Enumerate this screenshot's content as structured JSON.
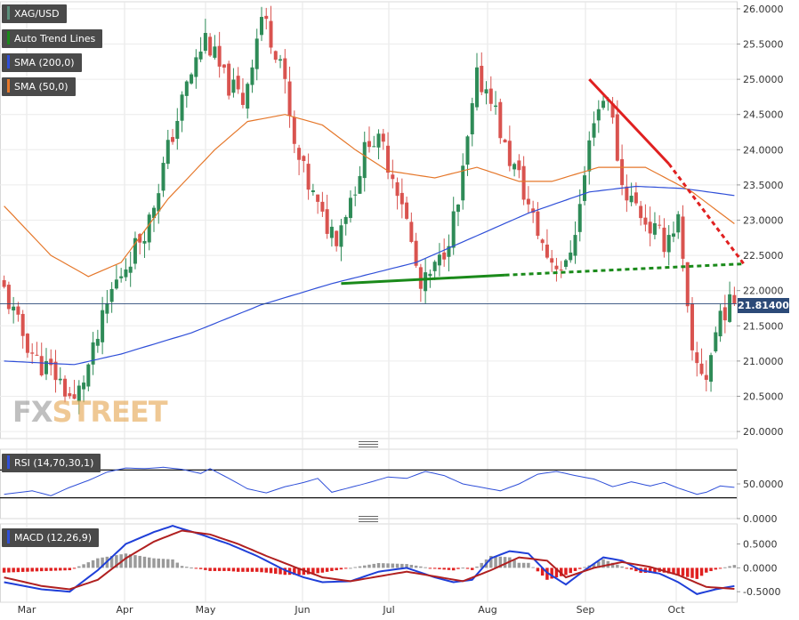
{
  "instrument": "XAG/USD",
  "brand": {
    "part1": "FX",
    "part2": "STREET"
  },
  "colors": {
    "up": "#2e8b57",
    "down": "#d9534f",
    "sma200": "#2f4fd8",
    "sma50": "#e5772a",
    "trend_up": "#1a8a1a",
    "trend_down": "#e02020",
    "macd": "#1f3fd8",
    "signal": "#b02020"
  },
  "legend": [
    {
      "label": "XAG/USD",
      "color": "#5a8f7a"
    },
    {
      "label": "Auto Trend Lines",
      "color": "#1a8a1a"
    },
    {
      "label": "SMA (200,0)",
      "color": "#2f4fd8"
    },
    {
      "label": "SMA (50,0)",
      "color": "#e5772a"
    }
  ],
  "last_price": "21.81400",
  "chart_data": [
    {
      "type": "candlestick",
      "title": "XAG/USD",
      "yticks": [
        "26.0000",
        "25.5000",
        "25.0000",
        "24.5000",
        "24.0000",
        "23.5000",
        "23.0000",
        "22.5000",
        "22.0000",
        "21.5000",
        "21.0000",
        "20.5000",
        "20.0000"
      ],
      "xticks": [
        "Mar",
        "Apr",
        "May",
        "Jun",
        "Jul",
        "Aug",
        "Sep",
        "Oct"
      ],
      "ylim": [
        19.9,
        26.1
      ],
      "last": 21.814,
      "close_anchors": [
        [
          0,
          22.0
        ],
        [
          3,
          21.5
        ],
        [
          7,
          21.0
        ],
        [
          11,
          20.8
        ],
        [
          15,
          20.4
        ],
        [
          19,
          21.1
        ],
        [
          23,
          22.0
        ],
        [
          27,
          22.5
        ],
        [
          31,
          23.0
        ],
        [
          35,
          24.0
        ],
        [
          39,
          24.9
        ],
        [
          43,
          25.6
        ],
        [
          47,
          25.0
        ],
        [
          51,
          24.7
        ],
        [
          55,
          25.9
        ],
        [
          59,
          25.3
        ],
        [
          62,
          24.0
        ],
        [
          65,
          23.5
        ],
        [
          68,
          23.0
        ],
        [
          71,
          22.8
        ],
        [
          75,
          23.5
        ],
        [
          78,
          24.2
        ],
        [
          81,
          24.0
        ],
        [
          85,
          23.3
        ],
        [
          89,
          22.0
        ],
        [
          93,
          22.4
        ],
        [
          97,
          23.2
        ],
        [
          101,
          25.0
        ],
        [
          104,
          24.8
        ],
        [
          107,
          24.0
        ],
        [
          110,
          23.6
        ],
        [
          113,
          23.0
        ],
        [
          116,
          22.5
        ],
        [
          120,
          22.3
        ],
        [
          123,
          23.2
        ],
        [
          126,
          24.5
        ],
        [
          129,
          24.8
        ],
        [
          132,
          23.5
        ],
        [
          135,
          23.2
        ],
        [
          138,
          22.9
        ],
        [
          141,
          22.7
        ],
        [
          144,
          23.0
        ],
        [
          147,
          21.0
        ],
        [
          150,
          20.8
        ],
        [
          153,
          21.7
        ],
        [
          156,
          21.814
        ]
      ]
    },
    {
      "type": "line",
      "title": "SMA (200,0)",
      "y": [
        [
          0,
          21.0
        ],
        [
          15,
          20.95
        ],
        [
          25,
          21.1
        ],
        [
          40,
          21.4
        ],
        [
          55,
          21.8
        ],
        [
          70,
          22.1
        ],
        [
          88,
          22.4
        ],
        [
          100,
          22.75
        ],
        [
          112,
          23.1
        ],
        [
          125,
          23.4
        ],
        [
          135,
          23.48
        ],
        [
          145,
          23.45
        ],
        [
          156,
          23.35
        ]
      ]
    },
    {
      "type": "line",
      "title": "SMA (50,0)",
      "y": [
        [
          0,
          23.2
        ],
        [
          10,
          22.5
        ],
        [
          18,
          22.2
        ],
        [
          25,
          22.4
        ],
        [
          35,
          23.3
        ],
        [
          45,
          24.0
        ],
        [
          52,
          24.4
        ],
        [
          60,
          24.5
        ],
        [
          68,
          24.35
        ],
        [
          75,
          24.0
        ],
        [
          82,
          23.7
        ],
        [
          92,
          23.6
        ],
        [
          101,
          23.75
        ],
        [
          110,
          23.55
        ],
        [
          117,
          23.55
        ],
        [
          127,
          23.75
        ],
        [
          137,
          23.75
        ],
        [
          147,
          23.4
        ],
        [
          156,
          22.95
        ]
      ]
    },
    {
      "type": "line",
      "title": "Auto Trend Lines",
      "lines": [
        {
          "name": "support-solid",
          "from": [
            72,
            22.1
          ],
          "to": [
            107,
            22.22
          ],
          "style": "solid"
        },
        {
          "name": "support-dotted",
          "from": [
            107,
            22.22
          ],
          "to": [
            158,
            22.38
          ],
          "style": "dotted"
        },
        {
          "name": "resistance-solid",
          "from": [
            125,
            25.0
          ],
          "to": [
            142,
            23.8
          ],
          "style": "solid"
        },
        {
          "name": "resistance-dotted",
          "from": [
            142,
            23.8
          ],
          "to": [
            158,
            22.38
          ],
          "style": "dotted"
        }
      ]
    },
    {
      "type": "line",
      "title": "RSI (14,70,30,1)",
      "legend_label": "RSI (14,70,30,1)",
      "yticks": [
        "50.0000",
        "0.0000"
      ],
      "ylim": [
        0,
        100
      ],
      "bands": [
        70,
        30
      ],
      "y": [
        [
          0,
          35
        ],
        [
          6,
          40
        ],
        [
          10,
          33
        ],
        [
          14,
          45
        ],
        [
          18,
          55
        ],
        [
          22,
          67
        ],
        [
          26,
          73
        ],
        [
          30,
          72
        ],
        [
          34,
          74
        ],
        [
          38,
          71
        ],
        [
          42,
          65
        ],
        [
          44,
          72
        ],
        [
          48,
          58
        ],
        [
          52,
          43
        ],
        [
          56,
          37
        ],
        [
          60,
          46
        ],
        [
          64,
          52
        ],
        [
          67,
          58
        ],
        [
          70,
          38
        ],
        [
          74,
          45
        ],
        [
          78,
          52
        ],
        [
          82,
          60
        ],
        [
          86,
          58
        ],
        [
          90,
          68
        ],
        [
          94,
          62
        ],
        [
          98,
          50
        ],
        [
          102,
          45
        ],
        [
          106,
          40
        ],
        [
          110,
          50
        ],
        [
          114,
          64
        ],
        [
          118,
          68
        ],
        [
          122,
          62
        ],
        [
          126,
          57
        ],
        [
          130,
          46
        ],
        [
          134,
          53
        ],
        [
          138,
          47
        ],
        [
          141,
          52
        ],
        [
          144,
          44
        ],
        [
          148,
          35
        ],
        [
          150,
          38
        ],
        [
          153,
          47
        ],
        [
          156,
          45
        ]
      ]
    },
    {
      "type": "bar",
      "title": "MACD (12,26,9)",
      "legend_label": "MACD (12,26,9)",
      "yticks": [
        "0.5000",
        "0.0000",
        "-0.5000"
      ],
      "ylim": [
        -0.72,
        0.92
      ],
      "macd": [
        [
          0,
          -0.3
        ],
        [
          8,
          -0.45
        ],
        [
          14,
          -0.5
        ],
        [
          20,
          -0.05
        ],
        [
          26,
          0.5
        ],
        [
          32,
          0.75
        ],
        [
          36,
          0.88
        ],
        [
          42,
          0.7
        ],
        [
          48,
          0.5
        ],
        [
          54,
          0.25
        ],
        [
          60,
          -0.05
        ],
        [
          64,
          -0.2
        ],
        [
          68,
          -0.3
        ],
        [
          74,
          -0.28
        ],
        [
          80,
          -0.08
        ],
        [
          86,
          0.0
        ],
        [
          92,
          -0.2
        ],
        [
          96,
          -0.3
        ],
        [
          100,
          -0.25
        ],
        [
          104,
          0.2
        ],
        [
          108,
          0.35
        ],
        [
          112,
          0.3
        ],
        [
          116,
          -0.1
        ],
        [
          120,
          -0.35
        ],
        [
          124,
          -0.05
        ],
        [
          128,
          0.22
        ],
        [
          132,
          0.15
        ],
        [
          136,
          -0.05
        ],
        [
          140,
          -0.12
        ],
        [
          144,
          -0.3
        ],
        [
          148,
          -0.55
        ],
        [
          152,
          -0.45
        ],
        [
          156,
          -0.38
        ]
      ],
      "signal": [
        [
          0,
          -0.2
        ],
        [
          8,
          -0.38
        ],
        [
          14,
          -0.45
        ],
        [
          20,
          -0.25
        ],
        [
          26,
          0.2
        ],
        [
          32,
          0.55
        ],
        [
          38,
          0.78
        ],
        [
          44,
          0.7
        ],
        [
          50,
          0.5
        ],
        [
          56,
          0.25
        ],
        [
          62,
          0.02
        ],
        [
          68,
          -0.2
        ],
        [
          74,
          -0.28
        ],
        [
          80,
          -0.18
        ],
        [
          86,
          -0.08
        ],
        [
          92,
          -0.18
        ],
        [
          98,
          -0.28
        ],
        [
          104,
          -0.05
        ],
        [
          110,
          0.22
        ],
        [
          116,
          0.15
        ],
        [
          120,
          -0.2
        ],
        [
          126,
          0.0
        ],
        [
          132,
          0.12
        ],
        [
          138,
          0.02
        ],
        [
          144,
          -0.15
        ],
        [
          150,
          -0.4
        ],
        [
          156,
          -0.44
        ]
      ]
    }
  ],
  "indicators": {
    "rsi_label": "RSI (14,70,30,1)",
    "macd_label": "MACD (12,26,9)"
  }
}
